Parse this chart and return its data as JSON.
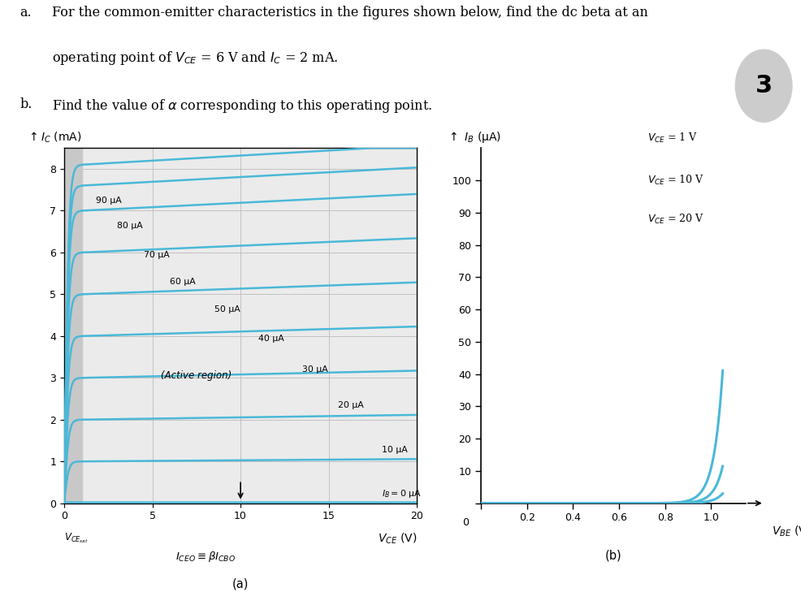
{
  "curve_color": "#4ab8d8",
  "grid_color": "#bbbbbb",
  "background_color": "#ffffff",
  "sat_region_color": "#c8c8c8",
  "left_plot": {
    "xlim": [
      0,
      20
    ],
    "ylim": [
      0,
      8.5
    ],
    "xticks": [
      0,
      5,
      10,
      15,
      20
    ],
    "yticks": [
      0,
      1,
      2,
      3,
      4,
      5,
      6,
      7,
      8
    ],
    "IB_uA": [
      0,
      10,
      20,
      30,
      40,
      50,
      60,
      70,
      80,
      90
    ],
    "IC_active": [
      0.02,
      1.0,
      2.0,
      3.0,
      4.0,
      5.0,
      6.0,
      7.0,
      7.6,
      8.1
    ]
  },
  "right_plot": {
    "xlim": [
      0,
      1.15
    ],
    "ylim": [
      0,
      110
    ],
    "xticks": [
      0,
      0.2,
      0.4,
      0.6,
      0.8,
      1.0
    ],
    "yticks": [
      0,
      10,
      20,
      30,
      40,
      50,
      60,
      70,
      80,
      90,
      100
    ]
  }
}
